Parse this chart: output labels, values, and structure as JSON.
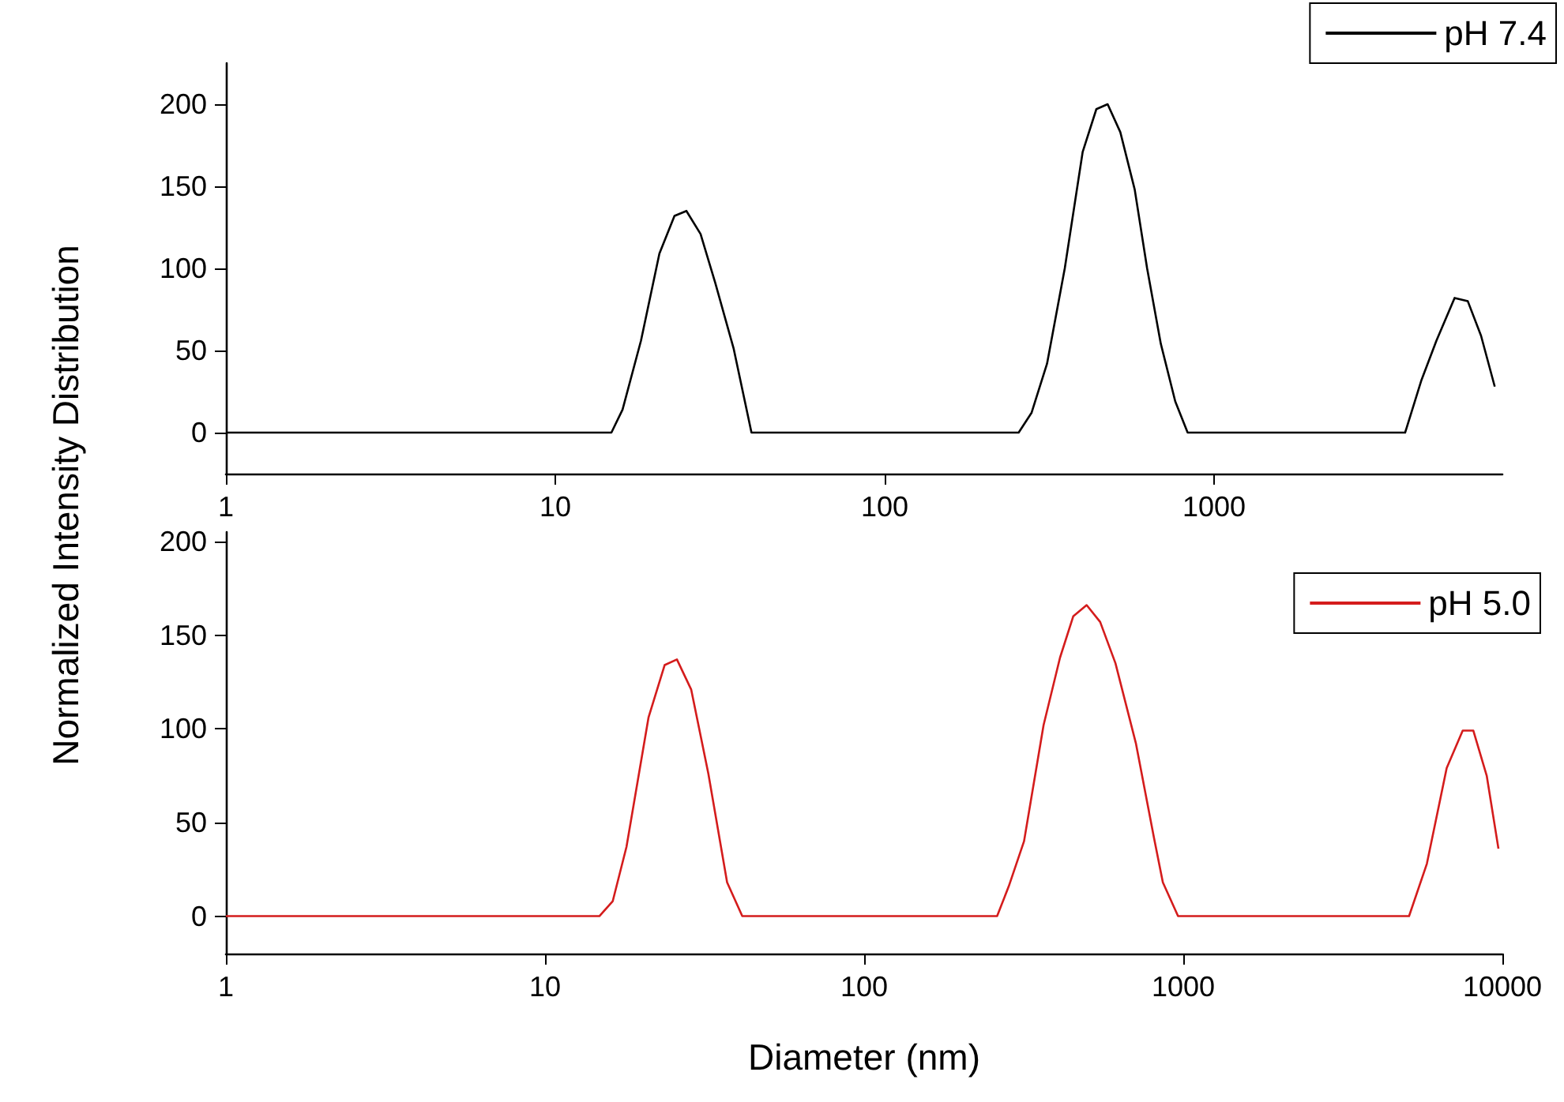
{
  "chart_data": [
    {
      "type": "line",
      "ylabel": "Normalized Intensity Distribution",
      "log": "x",
      "xlim": [
        1,
        7500
      ],
      "xticks": [
        1,
        10,
        100,
        1000
      ],
      "ylim": [
        -25,
        225
      ],
      "yticks": [
        0,
        50,
        100,
        150,
        200
      ],
      "grid": false,
      "legend": "top right",
      "marker": "none",
      "line_style": "solid",
      "series": [
        {
          "name": "pH 7.4",
          "color": "#000000",
          "x": [
            1,
            14.8,
            16,
            18.2,
            20.7,
            23,
            25,
            27.6,
            30.6,
            34.8,
            39.4,
            255,
            279,
            311,
            352,
            399,
            439,
            475,
            519,
            574,
            626,
            689,
            762,
            831,
            3800,
            4260,
            4730,
            5370,
            5890,
            6460,
            7110
          ],
          "values": [
            0,
            0,
            14,
            56,
            109,
            132,
            135,
            121,
            91,
            51,
            0,
            0,
            12,
            42,
            100,
            171,
            197,
            200,
            183,
            148,
            100,
            54,
            19,
            0,
            0,
            32,
            56,
            82,
            80,
            59,
            28
          ]
        }
      ]
    },
    {
      "type": "line",
      "xlabel": "Diameter (nm)",
      "log": "x",
      "xlim": [
        1,
        10000
      ],
      "xticks": [
        1,
        10,
        100,
        1000,
        10000
      ],
      "ylim": [
        -20,
        205
      ],
      "yticks": [
        0,
        50,
        100,
        150,
        200
      ],
      "grid": false,
      "legend": "top right",
      "marker": "none",
      "line_style": "solid",
      "series": [
        {
          "name": "pH 5.0",
          "color": "#d41c1c",
          "x": [
            1,
            14.8,
            16.3,
            18,
            21.1,
            23.7,
            25.9,
            28.7,
            32.5,
            37.2,
            41.5,
            261,
            284,
            317,
            365,
            411,
            452,
            498,
            549,
            613,
            711,
            809,
            863,
            963,
            5100,
            5800,
            6690,
            7510,
            8110,
            8930,
            9720
          ],
          "values": [
            0,
            0,
            8,
            37,
            106,
            134,
            137,
            121,
            76,
            18,
            0,
            0,
            16,
            40,
            102,
            138,
            160,
            166,
            157,
            135,
            92,
            42,
            18,
            0,
            0,
            28,
            79,
            99,
            99,
            75,
            36
          ]
        }
      ]
    }
  ]
}
